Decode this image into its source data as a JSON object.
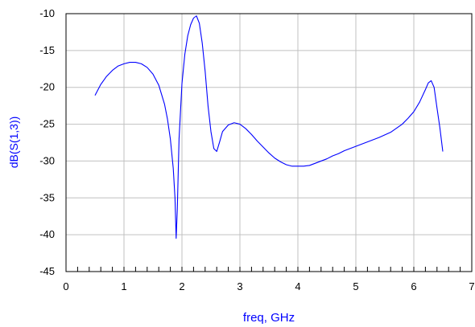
{
  "chart_data": {
    "type": "line",
    "xlabel": "freq, GHz",
    "ylabel": "dB(S(1,3))",
    "xlim": [
      0,
      7
    ],
    "ylim": [
      -45,
      -10
    ],
    "x_ticks": [
      0,
      1,
      2,
      3,
      4,
      5,
      6,
      7
    ],
    "x_tick_labels": [
      "0",
      "1",
      "2",
      "3",
      "4",
      "5",
      "6",
      "7"
    ],
    "y_ticks": [
      -45,
      -40,
      -35,
      -30,
      -25,
      -20,
      -15,
      -10
    ],
    "y_tick_labels": [
      "-45",
      "-40",
      "-35",
      "-30",
      "-25",
      "-20",
      "-15",
      "-10"
    ],
    "x_minor_step": 0.2,
    "grid": true,
    "colors": {
      "line": "#0000ff",
      "ylabel": "#0000ff",
      "xlabel": "#0000ff",
      "grid": "#c0c0c0",
      "axis": "#000000"
    },
    "series": [
      {
        "x": [
          0.5,
          0.6,
          0.7,
          0.8,
          0.9,
          1.0,
          1.1,
          1.2,
          1.3,
          1.4,
          1.5,
          1.6,
          1.7,
          1.75,
          1.8,
          1.85,
          1.88,
          1.9,
          1.92,
          1.95,
          2.0,
          2.05,
          2.1,
          2.15,
          2.2,
          2.25,
          2.3,
          2.35,
          2.4,
          2.45,
          2.5,
          2.55,
          2.6,
          2.65,
          2.7,
          2.8,
          2.9,
          3.0,
          3.1,
          3.2,
          3.3,
          3.4,
          3.5,
          3.6,
          3.7,
          3.8,
          3.9,
          4.0,
          4.1,
          4.2,
          4.3,
          4.4,
          4.5,
          4.6,
          4.7,
          4.8,
          4.9,
          5.0,
          5.2,
          5.4,
          5.6,
          5.8,
          5.9,
          6.0,
          6.1,
          6.2,
          6.25,
          6.3,
          6.35,
          6.4,
          6.45,
          6.5
        ],
        "y": [
          -21.1,
          -19.6,
          -18.5,
          -17.7,
          -17.1,
          -16.8,
          -16.6,
          -16.6,
          -16.8,
          -17.3,
          -18.2,
          -19.7,
          -22.3,
          -24.3,
          -27.0,
          -31.0,
          -35.0,
          -40.5,
          -36.5,
          -27.0,
          -19.5,
          -15.5,
          -13.0,
          -11.5,
          -10.6,
          -10.3,
          -11.3,
          -14.0,
          -17.8,
          -22.5,
          -26.0,
          -28.3,
          -28.7,
          -27.4,
          -26.0,
          -25.1,
          -24.8,
          -25.0,
          -25.6,
          -26.4,
          -27.3,
          -28.1,
          -28.9,
          -29.6,
          -30.1,
          -30.5,
          -30.7,
          -30.7,
          -30.7,
          -30.6,
          -30.3,
          -30.0,
          -29.7,
          -29.3,
          -29.0,
          -28.6,
          -28.3,
          -28.0,
          -27.4,
          -26.8,
          -26.1,
          -25.0,
          -24.2,
          -23.3,
          -22.0,
          -20.3,
          -19.4,
          -19.1,
          -20.0,
          -22.8,
          -25.5,
          -28.7
        ]
      }
    ]
  }
}
